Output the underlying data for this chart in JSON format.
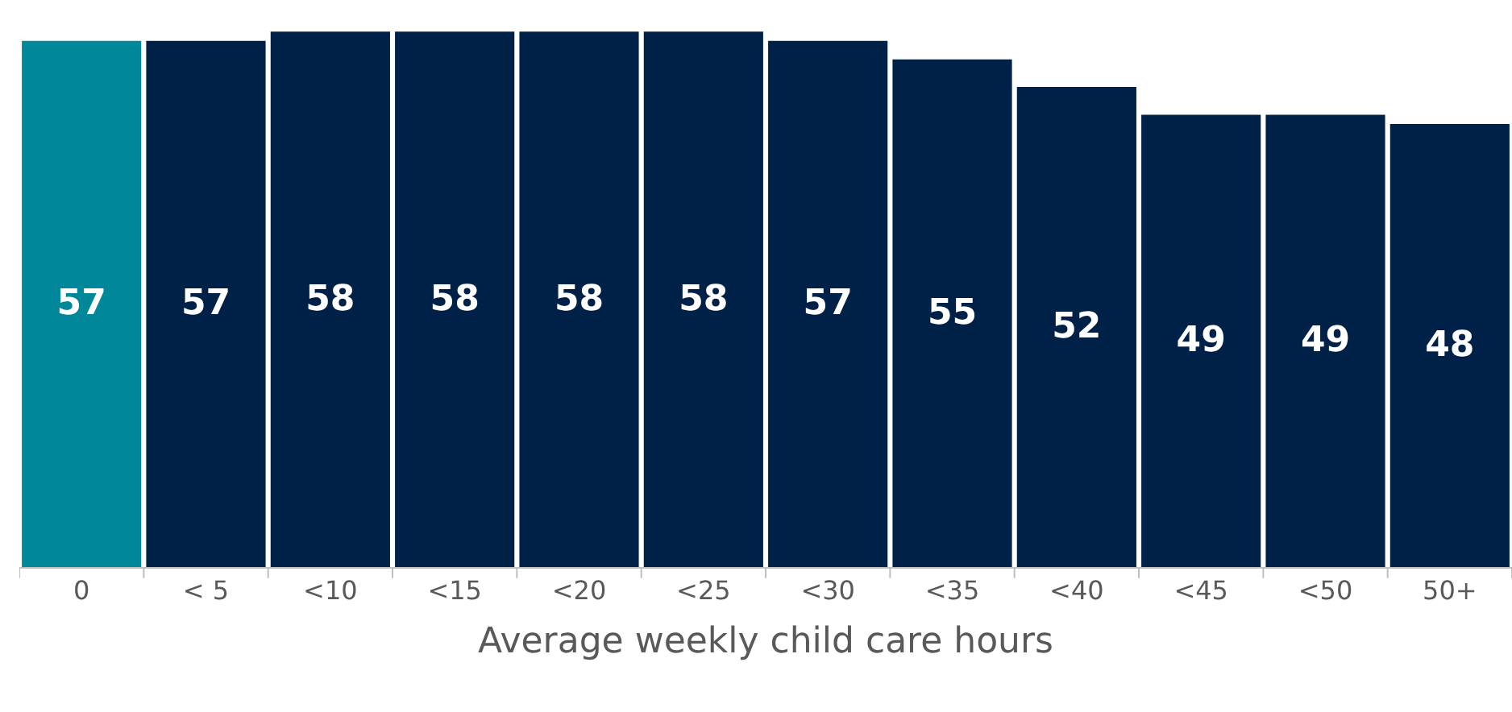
{
  "chart_data": {
    "type": "bar",
    "xlabel": "Average weekly child care hours",
    "categories": [
      "0",
      "< 5",
      "<10",
      "<15",
      "<20",
      "<25",
      "<30",
      "<35",
      "<40",
      "<45",
      "<50",
      "50+"
    ],
    "values": [
      57,
      57,
      58,
      58,
      58,
      58,
      57,
      55,
      52,
      49,
      49,
      48
    ],
    "colors": [
      "#00889a",
      "#002147",
      "#002147",
      "#002147",
      "#002147",
      "#002147",
      "#002147",
      "#002147",
      "#002147",
      "#002147",
      "#002147",
      "#002147"
    ],
    "data_labels": true
  }
}
